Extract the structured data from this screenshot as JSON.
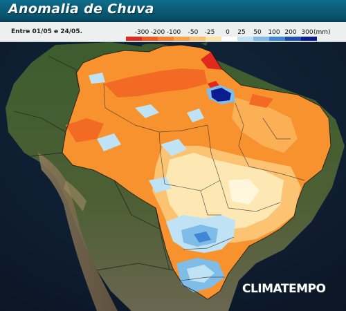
{
  "title": "Anomalia de Chuva",
  "period": "Entre 01/05 e 24/05.",
  "legend": {
    "labels": [
      "-300",
      "-200",
      "-100",
      "-50",
      "-25",
      "0",
      "25",
      "50",
      "100",
      "200",
      "300"
    ],
    "unit": "(mm)",
    "colors": [
      "#e02a1e",
      "#f0581e",
      "#f8802c",
      "#fba24a",
      "#fcc170",
      "#fde3a6",
      "#ffffff",
      "#bfe3f4",
      "#7fbde8",
      "#3f86d4",
      "#1d4fb3",
      "#0b1c90"
    ]
  },
  "brand": "CLIMATEMPO",
  "colors": {
    "ocean": "#0d1b2e",
    "land": "#3b5a30",
    "title_bar": "#0a5a76",
    "legend_bg": "#eef0f0"
  }
}
